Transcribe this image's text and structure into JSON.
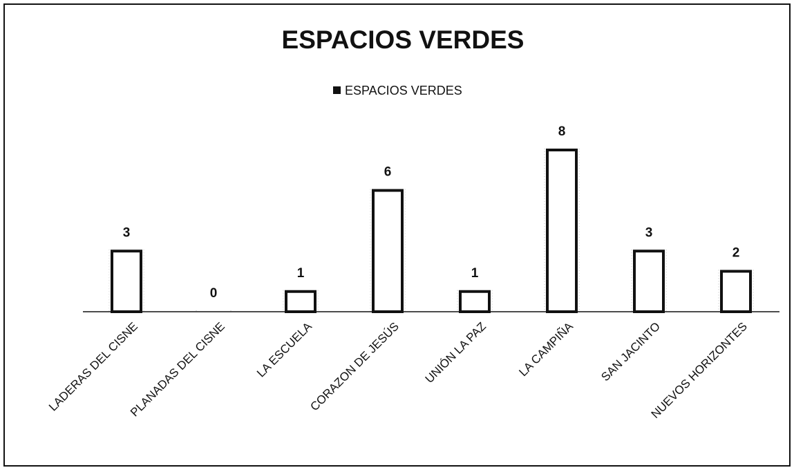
{
  "chart_data": {
    "type": "bar",
    "title": "ESPACIOS VERDES",
    "categories": [
      "LADERAS DEL CISNE",
      "PLANADAS DEL CISNE",
      "LA ESCUELA",
      "CORAZON DE JESÚS",
      "UNIÓN LA PAZ",
      "LA CAMPIÑA",
      "SAN JACINTO",
      "NUEVOS HORIZONTES"
    ],
    "series": [
      {
        "name": "ESPACIOS VERDES",
        "color": "#ffffff",
        "edgecolor": "#111111",
        "values": [
          3,
          0,
          1,
          6,
          1,
          8,
          3,
          2
        ]
      }
    ],
    "legend": "top"
  }
}
